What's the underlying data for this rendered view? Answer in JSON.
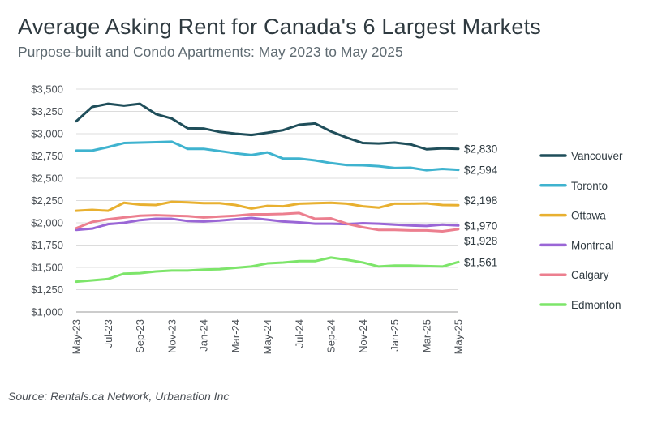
{
  "chart_data": {
    "type": "line",
    "title": "Average Asking Rent for Canada's 6 Largest Markets",
    "subtitle": "Purpose-built and Condo Apartments: May 2023 to May 2025",
    "source": "Source: Rentals.ca Network, Urbanation Inc",
    "xlabel": "",
    "ylabel": "",
    "ylim": [
      1000,
      3500
    ],
    "yticks": [
      1000,
      1250,
      1500,
      1750,
      2000,
      2250,
      2500,
      2750,
      3000,
      3250,
      3500
    ],
    "ytick_labels": [
      "$1,000",
      "$1,250",
      "$1,500",
      "$1,750",
      "$2,000",
      "$2,250",
      "$2,500",
      "$2,750",
      "$3,000",
      "$3,250",
      "$3,500"
    ],
    "categories": [
      "May-23",
      "Jun-23",
      "Jul-23",
      "Aug-23",
      "Sep-23",
      "Oct-23",
      "Nov-23",
      "Dec-23",
      "Jan-24",
      "Feb-24",
      "Mar-24",
      "Apr-24",
      "May-24",
      "Jun-24",
      "Jul-24",
      "Aug-24",
      "Sep-24",
      "Oct-24",
      "Nov-24",
      "Dec-24",
      "Jan-25",
      "Feb-25",
      "Mar-25",
      "Apr-25",
      "May-25"
    ],
    "xtick_labels": [
      "May-23",
      "Jul-23",
      "Sep-23",
      "Nov-23",
      "Jan-24",
      "Mar-24",
      "May-24",
      "Jul-24",
      "Sep-24",
      "Nov-24",
      "Jan-25",
      "Mar-25",
      "May-25"
    ],
    "grid": true,
    "legend_position": "right",
    "series": [
      {
        "name": "Vancouver",
        "color": "#1f4e5a",
        "end_label": "$2,830",
        "values": [
          3140,
          3300,
          3335,
          3315,
          3335,
          3220,
          3170,
          3060,
          3058,
          3020,
          3000,
          2985,
          3010,
          3040,
          3100,
          3115,
          3025,
          2955,
          2895,
          2890,
          2900,
          2880,
          2825,
          2835,
          2830
        ]
      },
      {
        "name": "Toronto",
        "color": "#3fb3cf",
        "end_label": "$2,594",
        "values": [
          2810,
          2810,
          2850,
          2895,
          2900,
          2905,
          2910,
          2830,
          2830,
          2805,
          2780,
          2760,
          2790,
          2720,
          2720,
          2700,
          2670,
          2648,
          2645,
          2635,
          2615,
          2618,
          2590,
          2605,
          2594
        ]
      },
      {
        "name": "Ottawa",
        "color": "#e8b030",
        "end_label": "$2,198",
        "values": [
          2135,
          2145,
          2135,
          2225,
          2205,
          2200,
          2235,
          2230,
          2220,
          2220,
          2200,
          2160,
          2190,
          2185,
          2215,
          2220,
          2225,
          2215,
          2185,
          2170,
          2215,
          2215,
          2218,
          2200,
          2198
        ]
      },
      {
        "name": "Montreal",
        "color": "#9a66d6",
        "end_label": "$1,970",
        "values": [
          1920,
          1935,
          1985,
          2000,
          2030,
          2045,
          2045,
          2020,
          2015,
          2025,
          2040,
          2055,
          2035,
          2015,
          2005,
          1990,
          1990,
          1985,
          1995,
          1990,
          1980,
          1970,
          1965,
          1980,
          1970
        ]
      },
      {
        "name": "Calgary",
        "color": "#ec7f8f",
        "end_label": "$1,928",
        "values": [
          1940,
          2010,
          2040,
          2060,
          2080,
          2085,
          2080,
          2075,
          2060,
          2070,
          2080,
          2095,
          2095,
          2100,
          2110,
          2045,
          2050,
          1990,
          1950,
          1920,
          1920,
          1915,
          1915,
          1905,
          1928
        ]
      },
      {
        "name": "Edmonton",
        "color": "#7de56a",
        "end_label": "$1,561",
        "values": [
          1340,
          1355,
          1370,
          1430,
          1435,
          1455,
          1465,
          1465,
          1475,
          1480,
          1495,
          1510,
          1545,
          1555,
          1570,
          1570,
          1610,
          1585,
          1555,
          1510,
          1520,
          1520,
          1515,
          1510,
          1561
        ]
      }
    ]
  }
}
